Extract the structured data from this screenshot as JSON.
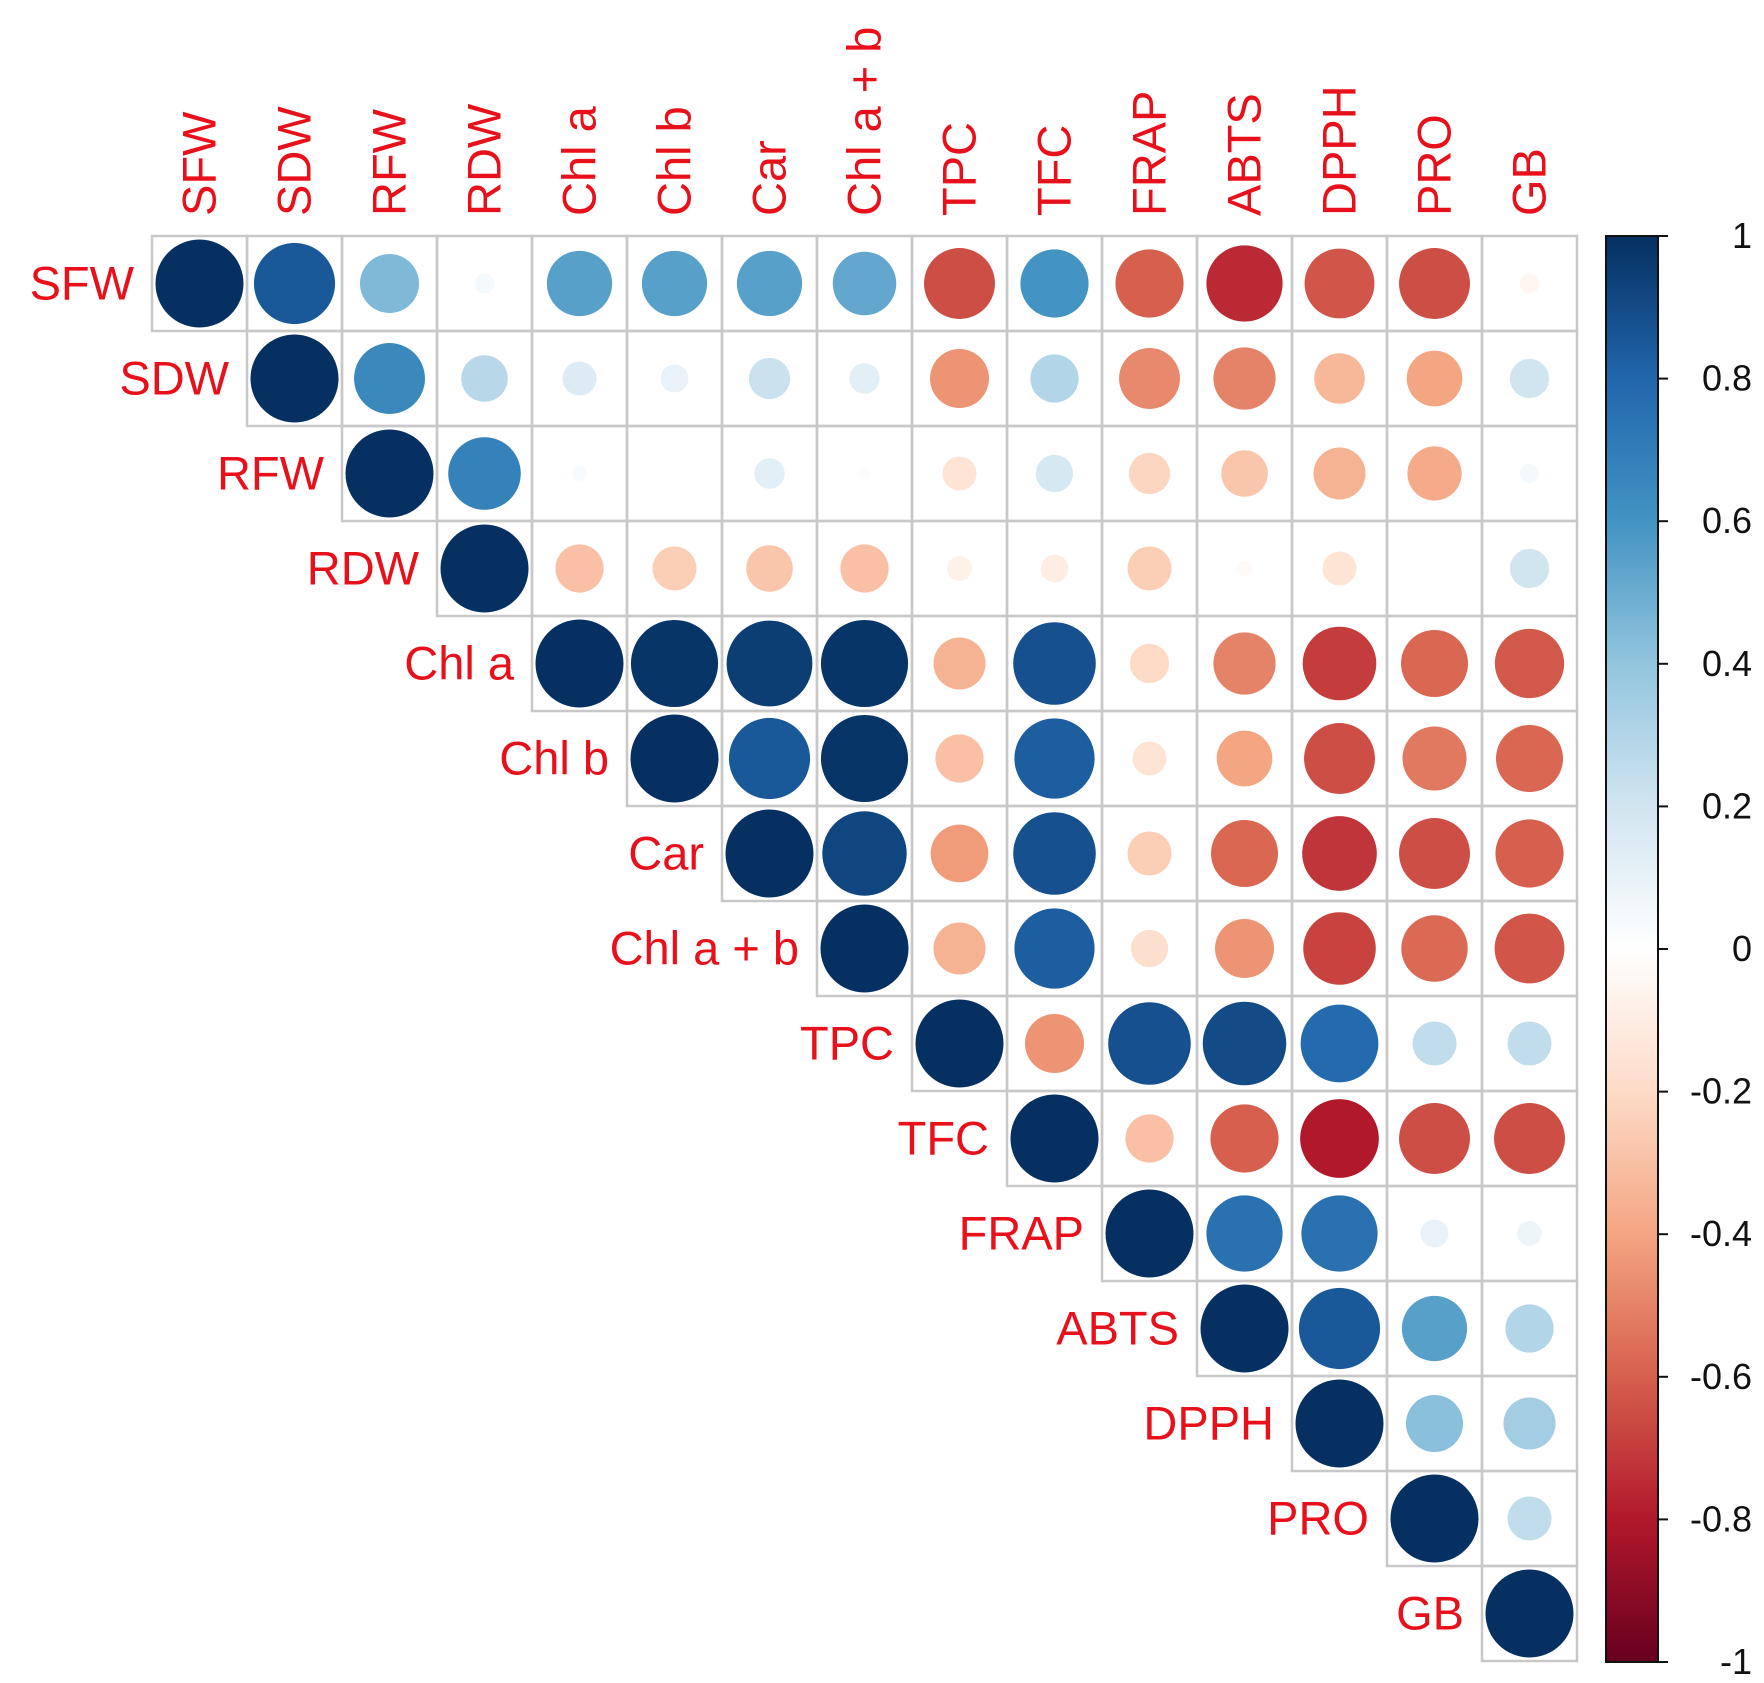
{
  "chart_data": {
    "type": "heatmap",
    "subtype": "correlation-upper-triangle-circles",
    "variables": [
      "SFW",
      "SDW",
      "RFW",
      "RDW",
      "Chl a",
      "Chl b",
      "Car",
      "Chl a + b",
      "TPC",
      "TFC",
      "FRAP",
      "ABTS",
      "DPPH",
      "PRO",
      "GB"
    ],
    "matrix": [
      [
        1.0,
        0.85,
        0.45,
        0.05,
        0.55,
        0.55,
        0.55,
        0.52,
        -0.65,
        0.6,
        -0.6,
        -0.75,
        -0.63,
        -0.65,
        -0.05
      ],
      [
        null,
        1.0,
        0.65,
        0.28,
        0.15,
        0.1,
        0.22,
        0.12,
        -0.45,
        0.3,
        -0.48,
        -0.5,
        -0.33,
        -0.4,
        0.2
      ],
      [
        null,
        null,
        1.0,
        0.68,
        0.03,
        0.0,
        0.12,
        0.02,
        -0.15,
        0.18,
        -0.22,
        -0.28,
        -0.35,
        -0.38,
        0.05
      ],
      [
        null,
        null,
        null,
        1.0,
        -0.3,
        -0.25,
        -0.28,
        -0.3,
        -0.08,
        -0.1,
        -0.25,
        -0.03,
        -0.15,
        0.0,
        0.2
      ],
      [
        null,
        null,
        null,
        null,
        1.0,
        0.98,
        0.95,
        0.98,
        -0.35,
        0.88,
        -0.2,
        -0.5,
        -0.7,
        -0.58,
        -0.62
      ],
      [
        null,
        null,
        null,
        null,
        null,
        1.0,
        0.85,
        0.98,
        -0.3,
        0.83,
        -0.15,
        -0.4,
        -0.65,
        -0.53,
        -0.58
      ],
      [
        null,
        null,
        null,
        null,
        null,
        null,
        1.0,
        0.92,
        -0.43,
        0.88,
        -0.25,
        -0.58,
        -0.72,
        -0.65,
        -0.6
      ],
      [
        null,
        null,
        null,
        null,
        null,
        null,
        null,
        1.0,
        -0.35,
        0.83,
        -0.18,
        -0.45,
        -0.68,
        -0.57,
        -0.63
      ],
      [
        null,
        null,
        null,
        null,
        null,
        null,
        null,
        null,
        1.0,
        -0.45,
        0.88,
        0.9,
        0.78,
        0.25,
        0.25
      ],
      [
        null,
        null,
        null,
        null,
        null,
        null,
        null,
        null,
        null,
        1.0,
        -0.3,
        -0.6,
        -0.8,
        -0.65,
        -0.65
      ],
      [
        null,
        null,
        null,
        null,
        null,
        null,
        null,
        null,
        null,
        null,
        1.0,
        0.75,
        0.75,
        0.1,
        0.08
      ],
      [
        null,
        null,
        null,
        null,
        null,
        null,
        null,
        null,
        null,
        null,
        null,
        1.0,
        0.85,
        0.55,
        0.3
      ],
      [
        null,
        null,
        null,
        null,
        null,
        null,
        null,
        null,
        null,
        null,
        null,
        null,
        1.0,
        0.42,
        0.35
      ],
      [
        null,
        null,
        null,
        null,
        null,
        null,
        null,
        null,
        null,
        null,
        null,
        null,
        null,
        1.0,
        0.25
      ],
      [
        null,
        null,
        null,
        null,
        null,
        null,
        null,
        null,
        null,
        null,
        null,
        null,
        null,
        null,
        1.0
      ]
    ],
    "colorbar": {
      "range": [
        -1,
        1
      ],
      "ticks": [
        1,
        0.8,
        0.6,
        0.4,
        0.2,
        0,
        -0.2,
        -0.4,
        -0.6,
        -0.8,
        -1
      ],
      "tick_labels": [
        "1",
        "0.8",
        "0.6",
        "0.4",
        "0.2",
        "0",
        "-0.2",
        "-0.4",
        "-0.6",
        "-0.8",
        "-1"
      ],
      "palette": [
        "#67001F",
        "#B2182B",
        "#D6604D",
        "#F4A582",
        "#FDDBC7",
        "#FFFFFF",
        "#D1E5F0",
        "#92C5DE",
        "#4393C3",
        "#2166AC",
        "#053061"
      ]
    },
    "label_color": "#e8101a",
    "grid_color": "#c8c8c8",
    "title": "",
    "legend_position": "right"
  }
}
